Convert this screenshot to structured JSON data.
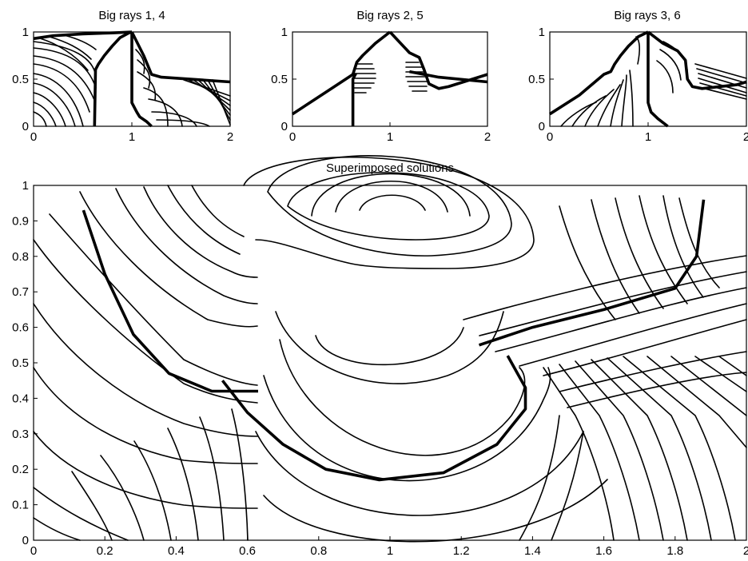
{
  "chart_data": [
    {
      "type": "line",
      "title": "Big rays 1, 4",
      "xlim": [
        0,
        2
      ],
      "ylim": [
        0,
        1
      ],
      "xticks": [
        0,
        1,
        2
      ],
      "yticks": [
        0,
        0.5,
        1
      ],
      "xtick_labels": [
        "0",
        "1",
        "2"
      ],
      "ytick_labels": [
        "0",
        "0.5",
        "1"
      ],
      "grid": false,
      "series": [
        {
          "bold": true,
          "x": [
            0.62,
            0.63,
            0.66,
            0.72,
            0.8,
            0.88,
            0.97,
            1.0
          ],
          "y": [
            0.0,
            0.6,
            0.66,
            0.75,
            0.85,
            0.94,
            0.99,
            1.0
          ]
        },
        {
          "bold": true,
          "x": [
            1.0,
            1.0,
            1.05,
            1.08,
            1.15,
            1.2
          ],
          "y": [
            1.0,
            0.25,
            0.15,
            0.1,
            0.05,
            0.0
          ]
        },
        {
          "bold": true,
          "x": [
            1.0,
            1.12,
            1.2,
            1.3,
            2.0
          ],
          "y": [
            1.0,
            0.75,
            0.55,
            0.52,
            0.47
          ]
        },
        {
          "bold": true,
          "x": [
            0.0,
            0.2,
            0.5,
            0.8,
            1.0
          ],
          "y": [
            0.93,
            0.96,
            0.98,
            0.99,
            1.0
          ]
        }
      ]
    },
    {
      "type": "line",
      "title": "Big rays 2, 5",
      "xlim": [
        0,
        2
      ],
      "ylim": [
        0,
        1
      ],
      "xticks": [
        0,
        1,
        2
      ],
      "yticks": [
        0,
        0.5,
        1
      ],
      "xtick_labels": [
        "0",
        "1",
        "2"
      ],
      "ytick_labels": [
        "0",
        "0.5",
        "1"
      ],
      "grid": false,
      "series": [
        {
          "bold": true,
          "x": [
            0.0,
            0.4,
            0.62,
            0.66,
            0.72,
            0.85,
            1.0
          ],
          "y": [
            0.13,
            0.4,
            0.55,
            0.68,
            0.75,
            0.88,
            1.0
          ]
        },
        {
          "bold": true,
          "x": [
            0.62,
            0.62,
            0.65
          ],
          "y": [
            0.0,
            0.5,
            0.56
          ]
        },
        {
          "bold": true,
          "x": [
            1.0,
            1.2,
            1.3,
            1.35,
            1.4,
            1.5,
            1.6,
            2.0
          ],
          "y": [
            1.0,
            0.78,
            0.73,
            0.6,
            0.45,
            0.4,
            0.42,
            0.55
          ]
        },
        {
          "bold": true,
          "x": [
            1.2,
            1.5,
            2.0
          ],
          "y": [
            0.58,
            0.52,
            0.47
          ]
        }
      ]
    },
    {
      "type": "line",
      "title": "Big rays 3, 6",
      "xlim": [
        0,
        2
      ],
      "ylim": [
        0,
        1
      ],
      "xticks": [
        0,
        1,
        2
      ],
      "yticks": [
        0,
        0.5,
        1
      ],
      "xtick_labels": [
        "0",
        "1",
        "2"
      ],
      "ytick_labels": [
        "0",
        "0.5",
        "1"
      ],
      "grid": false,
      "series": [
        {
          "bold": true,
          "x": [
            0.0,
            0.3,
            0.55,
            0.62,
            0.66,
            0.72,
            0.8,
            0.9,
            1.0
          ],
          "y": [
            0.13,
            0.33,
            0.55,
            0.58,
            0.66,
            0.75,
            0.85,
            0.95,
            1.0
          ]
        },
        {
          "bold": true,
          "x": [
            1.0,
            1.0,
            1.03,
            1.1,
            1.2
          ],
          "y": [
            1.0,
            0.25,
            0.15,
            0.08,
            0.0
          ]
        },
        {
          "bold": true,
          "x": [
            1.0,
            1.15,
            1.3,
            1.38,
            1.4,
            1.45,
            1.55,
            1.9,
            2.0
          ],
          "y": [
            1.0,
            0.88,
            0.8,
            0.7,
            0.5,
            0.42,
            0.4,
            0.44,
            0.47
          ]
        }
      ]
    },
    {
      "type": "line",
      "title": "Superimposed solutions",
      "xlim": [
        0,
        2
      ],
      "ylim": [
        0,
        1
      ],
      "xticks": [
        0,
        0.2,
        0.4,
        0.6,
        0.8,
        1,
        1.2,
        1.4,
        1.6,
        1.8,
        2
      ],
      "yticks": [
        0,
        0.1,
        0.2,
        0.3,
        0.4,
        0.5,
        0.6,
        0.7,
        0.8,
        0.9,
        1
      ],
      "xtick_labels": [
        "0",
        "0.2",
        "0.4",
        "0.6",
        "0.8",
        "1",
        "1.2",
        "1.4",
        "1.6",
        "1.8",
        "2"
      ],
      "ytick_labels": [
        "0",
        "0.1",
        "0.2",
        "0.3",
        "0.4",
        "0.5",
        "0.6",
        "0.7",
        "0.8",
        "0.9",
        "1"
      ],
      "grid": false,
      "series": [
        {
          "bold": true,
          "x": [
            0.14,
            0.2,
            0.28,
            0.38,
            0.5,
            0.63
          ],
          "y": [
            0.93,
            0.75,
            0.58,
            0.47,
            0.42,
            0.42
          ]
        },
        {
          "bold": true,
          "x": [
            0.53,
            0.6,
            0.7,
            0.82,
            0.97,
            1.15,
            1.3,
            1.38,
            1.38,
            1.33
          ],
          "y": [
            0.45,
            0.36,
            0.27,
            0.2,
            0.17,
            0.19,
            0.27,
            0.37,
            0.43,
            0.52
          ]
        },
        {
          "bold": true,
          "x": [
            1.25,
            1.4,
            1.6,
            1.8,
            1.86,
            1.88
          ],
          "y": [
            0.55,
            0.6,
            0.65,
            0.71,
            0.8,
            0.96
          ]
        }
      ]
    }
  ]
}
